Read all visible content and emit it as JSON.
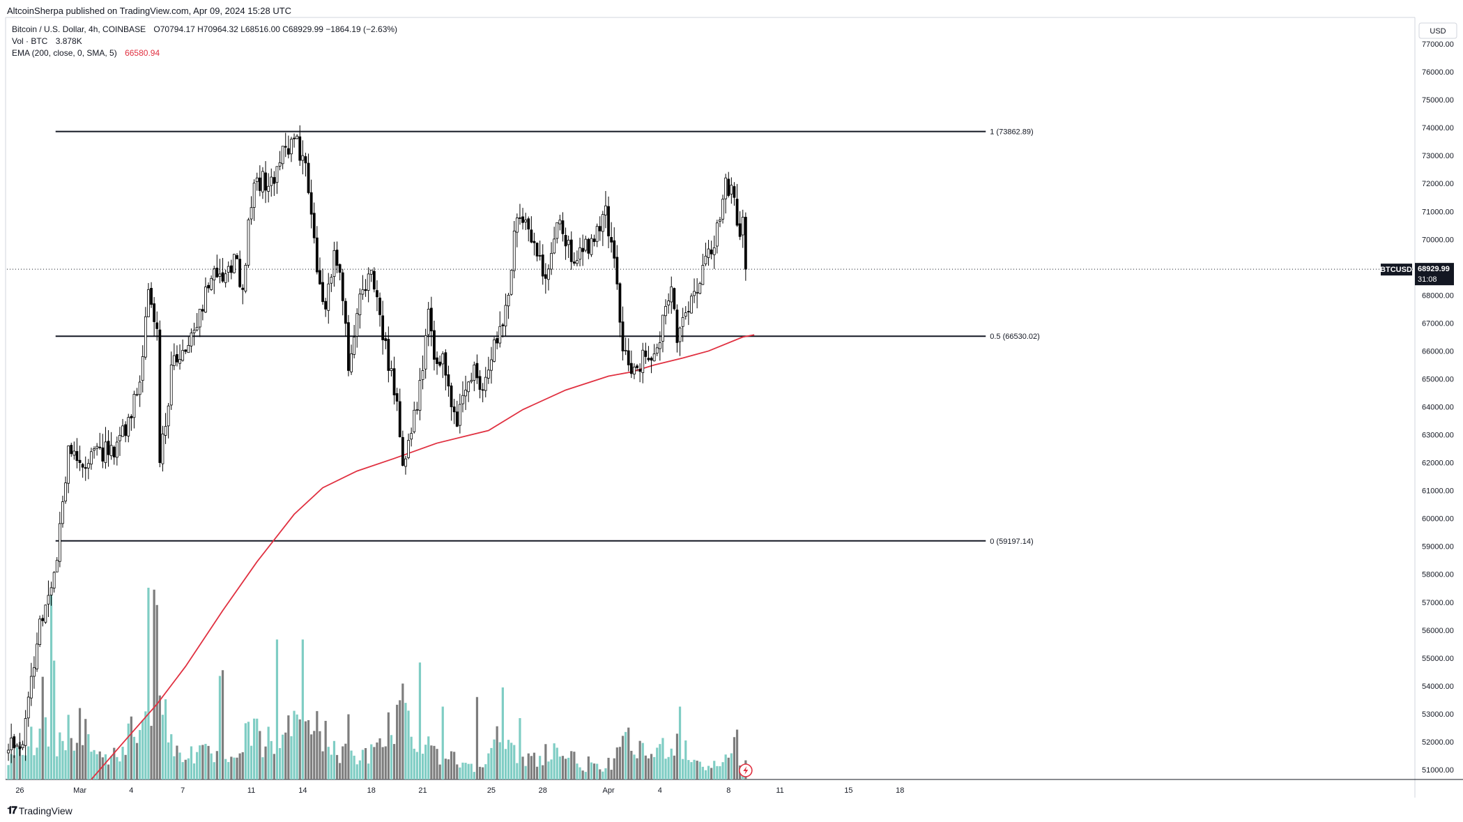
{
  "header": {
    "published": "AltcoinSherpa published on TradingView.com, Apr 09, 2024 15:28 UTC"
  },
  "legend": {
    "symbol": "Bitcoin / U.S. Dollar, 4h, COINBASE",
    "ohlc": "O70794.17  H70964.32  L68516.00  C68929.99  −1864.19 (−2.63%)",
    "vol_label": "Vol · BTC",
    "vol_value": "3.878K",
    "ema_label": "EMA (200, close, 0, SMA, 5)",
    "ema_value": "66580.94"
  },
  "axis": {
    "currency": "USD",
    "symbol_tag": "BTCUSD",
    "last_price": "68929.99",
    "countdown": "31:08"
  },
  "footer": {
    "logo_mark": "𝟏𝟕",
    "logo_text": "TradingView"
  },
  "colors": {
    "up": "#26a69a",
    "down": "#000000",
    "candle_body_up": "#ffffff",
    "volume_up": "#7fcdc4",
    "volume_down": "#7d7d7d",
    "ema": "#e03040",
    "fib": "#131722"
  },
  "chart_data": {
    "type": "candlestick",
    "timeframe": "4h",
    "ylim": [
      50650,
      77950
    ],
    "y_ticks": [
      51000,
      52000,
      53000,
      54000,
      55000,
      56000,
      57000,
      58000,
      59000,
      60000,
      61000,
      62000,
      63000,
      64000,
      65000,
      66000,
      67000,
      68000,
      69000,
      70000,
      71000,
      72000,
      73000,
      74000,
      75000,
      76000,
      77000
    ],
    "x_ticks": [
      {
        "label": "26",
        "bar": 4
      },
      {
        "label": "Mar",
        "bar": 25
      },
      {
        "label": "4",
        "bar": 43
      },
      {
        "label": "7",
        "bar": 61
      },
      {
        "label": "11",
        "bar": 85
      },
      {
        "label": "14",
        "bar": 103
      },
      {
        "label": "18",
        "bar": 127
      },
      {
        "label": "21",
        "bar": 145
      },
      {
        "label": "25",
        "bar": 169
      },
      {
        "label": "28",
        "bar": 187
      },
      {
        "label": "Apr",
        "bar": 210
      },
      {
        "label": "4",
        "bar": 228
      },
      {
        "label": "8",
        "bar": 252
      },
      {
        "label": "11",
        "bar": 270
      },
      {
        "label": "15",
        "bar": 294
      },
      {
        "label": "18",
        "bar": 312
      }
    ],
    "total_bar_slots": 330,
    "fib_levels": [
      {
        "level": "1",
        "price": 73862.89,
        "label": "1 (73862.89)"
      },
      {
        "level": "0.5",
        "price": 66530.02,
        "label": "0.5 (66530.02)"
      },
      {
        "level": "0",
        "price": 59197.14,
        "label": "0 (59197.14)"
      }
    ],
    "last_price": 68929.99,
    "ema": {
      "name": "EMA (200, close, 0, SMA, 5)",
      "last": 66580.94,
      "points": [
        [
          29,
          50650
        ],
        [
          40,
          51950
        ],
        [
          52,
          53350
        ],
        [
          62,
          54700
        ],
        [
          75,
          56700
        ],
        [
          87,
          58450
        ],
        [
          100,
          60150
        ],
        [
          110,
          61100
        ],
        [
          122,
          61700
        ],
        [
          135,
          62150
        ],
        [
          150,
          62700
        ],
        [
          160,
          62950
        ],
        [
          168,
          63150
        ],
        [
          180,
          63900
        ],
        [
          195,
          64600
        ],
        [
          210,
          65100
        ],
        [
          218,
          65250
        ],
        [
          226,
          65500
        ],
        [
          236,
          65750
        ],
        [
          245,
          66000
        ],
        [
          257,
          66500
        ],
        [
          261,
          66580
        ]
      ]
    },
    "anchor_closes": [
      [
        0,
        51700
      ],
      [
        5,
        51900
      ],
      [
        7,
        53600
      ],
      [
        10,
        55500
      ],
      [
        13,
        56900
      ],
      [
        17,
        58500
      ],
      [
        19,
        60600
      ],
      [
        21,
        62600
      ],
      [
        25,
        62000
      ],
      [
        30,
        62500
      ],
      [
        37,
        62200
      ],
      [
        43,
        63600
      ],
      [
        47,
        65800
      ],
      [
        49,
        68200
      ],
      [
        52,
        66800
      ],
      [
        53,
        62000
      ],
      [
        55,
        63300
      ],
      [
        57,
        65500
      ],
      [
        63,
        66200
      ],
      [
        67,
        67500
      ],
      [
        71,
        68600
      ],
      [
        75,
        68500
      ],
      [
        80,
        69300
      ],
      [
        82,
        68200
      ],
      [
        84,
        70700
      ],
      [
        87,
        72200
      ],
      [
        91,
        71900
      ],
      [
        93,
        72000
      ],
      [
        97,
        73300
      ],
      [
        100,
        73600
      ],
      [
        103,
        73000
      ],
      [
        106,
        70900
      ],
      [
        109,
        68400
      ],
      [
        111,
        67500
      ],
      [
        114,
        69600
      ],
      [
        117,
        67800
      ],
      [
        119,
        65300
      ],
      [
        121,
        66500
      ],
      [
        124,
        68200
      ],
      [
        127,
        68900
      ],
      [
        130,
        67300
      ],
      [
        133,
        65300
      ],
      [
        136,
        64200
      ],
      [
        138,
        61900
      ],
      [
        140,
        62800
      ],
      [
        143,
        63900
      ],
      [
        145,
        65300
      ],
      [
        147,
        67500
      ],
      [
        149,
        65700
      ],
      [
        152,
        65900
      ],
      [
        155,
        64000
      ],
      [
        157,
        63300
      ],
      [
        160,
        64600
      ],
      [
        163,
        65500
      ],
      [
        166,
        64600
      ],
      [
        170,
        66400
      ],
      [
        173,
        66900
      ],
      [
        175,
        68000
      ],
      [
        177,
        70300
      ],
      [
        180,
        70600
      ],
      [
        183,
        69900
      ],
      [
        186,
        69400
      ],
      [
        188,
        68600
      ],
      [
        192,
        70600
      ],
      [
        194,
        70200
      ],
      [
        197,
        69200
      ],
      [
        200,
        69700
      ],
      [
        203,
        69500
      ],
      [
        207,
        70300
      ],
      [
        209,
        71200
      ],
      [
        211,
        69900
      ],
      [
        213,
        68400
      ],
      [
        215,
        66000
      ],
      [
        217,
        65500
      ],
      [
        220,
        65400
      ],
      [
        223,
        65800
      ],
      [
        226,
        65900
      ],
      [
        228,
        66300
      ],
      [
        230,
        67600
      ],
      [
        232,
        68300
      ],
      [
        234,
        66300
      ],
      [
        236,
        67200
      ],
      [
        238,
        67400
      ],
      [
        241,
        68100
      ],
      [
        244,
        69400
      ],
      [
        247,
        69700
      ],
      [
        249,
        70700
      ],
      [
        251,
        72200
      ],
      [
        254,
        71500
      ],
      [
        256,
        70100
      ],
      [
        257,
        70794.17
      ],
      [
        258,
        68929.99
      ]
    ],
    "vol_anchors": [
      [
        0,
        0.08
      ],
      [
        5,
        0.17
      ],
      [
        9,
        0.21
      ],
      [
        12,
        0.45
      ],
      [
        14,
        0.14
      ],
      [
        20,
        0.26
      ],
      [
        26,
        0.28
      ],
      [
        33,
        0.1
      ],
      [
        40,
        0.15
      ],
      [
        47,
        0.38
      ],
      [
        52,
        0.45
      ],
      [
        55,
        0.3
      ],
      [
        58,
        0.15
      ],
      [
        65,
        0.14
      ],
      [
        72,
        0.12
      ],
      [
        80,
        0.08
      ],
      [
        84,
        0.26
      ],
      [
        89,
        0.2
      ],
      [
        96,
        0.18
      ],
      [
        103,
        0.42
      ],
      [
        106,
        0.28
      ],
      [
        111,
        0.22
      ],
      [
        116,
        0.15
      ],
      [
        122,
        0.1
      ],
      [
        128,
        0.14
      ],
      [
        133,
        0.26
      ],
      [
        138,
        0.4
      ],
      [
        142,
        0.22
      ],
      [
        147,
        0.2
      ],
      [
        152,
        0.12
      ],
      [
        158,
        0.1
      ],
      [
        164,
        0.06
      ],
      [
        170,
        0.22
      ],
      [
        176,
        0.14
      ],
      [
        180,
        0.1
      ],
      [
        186,
        0.12
      ],
      [
        190,
        0.16
      ],
      [
        196,
        0.12
      ],
      [
        202,
        0.07
      ],
      [
        208,
        0.05
      ],
      [
        213,
        0.12
      ],
      [
        217,
        0.2
      ],
      [
        221,
        0.14
      ],
      [
        226,
        0.13
      ],
      [
        230,
        0.18
      ],
      [
        235,
        0.2
      ],
      [
        240,
        0.1
      ],
      [
        246,
        0.06
      ],
      [
        250,
        0.1
      ],
      [
        254,
        0.16
      ],
      [
        257,
        0.1
      ],
      [
        258,
        0.09
      ]
    ],
    "vol_spikes": [
      [
        15,
        0.98
      ],
      [
        16,
        0.62
      ],
      [
        49,
        1.0
      ],
      [
        51,
        0.99
      ],
      [
        52,
        0.91
      ],
      [
        74,
        0.54
      ],
      [
        75,
        0.57
      ],
      [
        94,
        0.73
      ],
      [
        103,
        0.73
      ],
      [
        119,
        0.34
      ],
      [
        133,
        0.35
      ],
      [
        144,
        0.61
      ],
      [
        152,
        0.38
      ],
      [
        164,
        0.43
      ],
      [
        173,
        0.48
      ],
      [
        179,
        0.32
      ],
      [
        203,
        0.12
      ],
      [
        235,
        0.38
      ],
      [
        255,
        0.26
      ]
    ]
  }
}
